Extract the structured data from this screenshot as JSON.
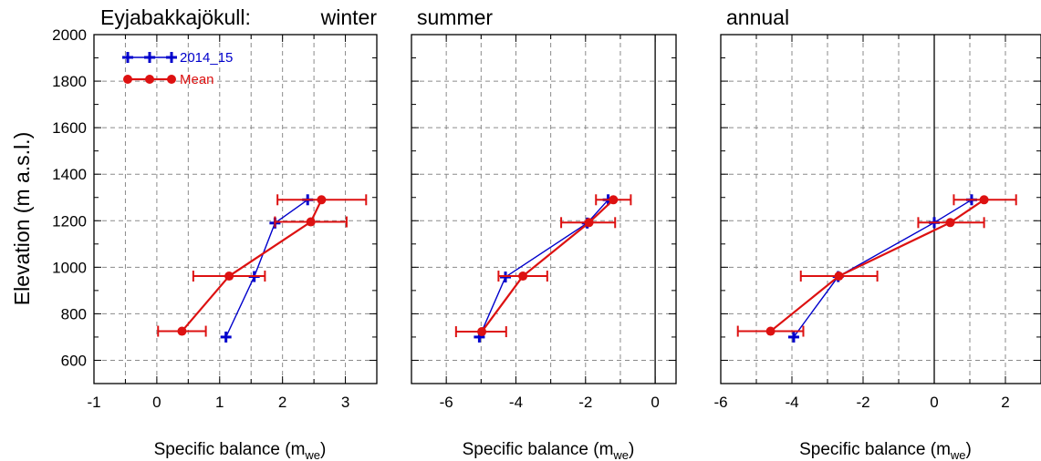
{
  "figure": {
    "ylabel": "Elevation (m a.s.l.)"
  },
  "chart_data": [
    {
      "type": "line",
      "glacier_title": "Eyjabakkajökull:",
      "panel_title": "winter",
      "xlabel_main": "Specific balance (m",
      "xlabel_sub": "we",
      "xlabel_close": ")",
      "xlim": [
        -1,
        3.5
      ],
      "xticks": [
        -1,
        0,
        1,
        2,
        3
      ],
      "ylim": [
        500,
        2000
      ],
      "yticks": [
        600,
        800,
        1000,
        1200,
        1400,
        1600,
        1800,
        2000
      ],
      "zero_line": false,
      "legend": {
        "position": "top-left",
        "entries": [
          "2014_15",
          "Mean"
        ]
      },
      "series": [
        {
          "name": "2014_15",
          "color": "#0000CC",
          "marker": "plus",
          "points": [
            [
              1.1,
              700
            ],
            [
              1.55,
              960
            ],
            [
              1.88,
              1190
            ],
            [
              2.4,
              1290
            ]
          ]
        },
        {
          "name": "Mean",
          "color": "#DD1111",
          "marker": "circle",
          "points": [
            [
              0.4,
              725
            ],
            [
              1.15,
              962
            ],
            [
              2.45,
              1195
            ],
            [
              2.62,
              1290
            ]
          ],
          "errors": [
            [
              0.02,
              0.78
            ],
            [
              0.58,
              1.72
            ],
            [
              1.88,
              3.02
            ],
            [
              1.92,
              3.33
            ]
          ]
        }
      ]
    },
    {
      "type": "line",
      "panel_title": "summer",
      "xlabel_main": "Specific balance (m",
      "xlabel_sub": "we",
      "xlabel_close": ")",
      "xlim": [
        -7,
        0.6
      ],
      "xticks": [
        -6,
        -4,
        -2,
        0
      ],
      "ylim": [
        500,
        2000
      ],
      "yticks": [
        600,
        800,
        1000,
        1200,
        1400,
        1600,
        1800,
        2000
      ],
      "zero_line": true,
      "series": [
        {
          "name": "2014_15",
          "color": "#0000CC",
          "marker": "plus",
          "points": [
            [
              -5.05,
              700
            ],
            [
              -4.3,
              958
            ],
            [
              -1.95,
              1190
            ],
            [
              -1.35,
              1290
            ]
          ]
        },
        {
          "name": "Mean",
          "color": "#DD1111",
          "marker": "circle",
          "points": [
            [
              -4.98,
              723
            ],
            [
              -3.8,
              962
            ],
            [
              -1.9,
              1192
            ],
            [
              -1.2,
              1290
            ]
          ],
          "errors": [
            [
              -5.72,
              -4.28
            ],
            [
              -4.5,
              -3.1
            ],
            [
              -2.7,
              -1.15
            ],
            [
              -1.7,
              -0.7
            ]
          ]
        }
      ]
    },
    {
      "type": "line",
      "panel_title": "annual",
      "xlabel_main": "Specific balance (m",
      "xlabel_sub": "we",
      "xlabel_close": ")",
      "xlim": [
        -6,
        3
      ],
      "xticks": [
        -6,
        -4,
        -2,
        0,
        2
      ],
      "ylim": [
        500,
        2000
      ],
      "yticks": [
        600,
        800,
        1000,
        1200,
        1400,
        1600,
        1800,
        2000
      ],
      "zero_line": true,
      "series": [
        {
          "name": "2014_15",
          "color": "#0000CC",
          "marker": "plus",
          "points": [
            [
              -3.95,
              700
            ],
            [
              -2.7,
              960
            ],
            [
              0.0,
              1192
            ],
            [
              1.05,
              1290
            ]
          ]
        },
        {
          "name": "Mean",
          "color": "#DD1111",
          "marker": "circle",
          "points": [
            [
              -4.6,
              725
            ],
            [
              -2.68,
              962
            ],
            [
              0.45,
              1192
            ],
            [
              1.4,
              1290
            ]
          ],
          "errors": [
            [
              -5.52,
              -3.68
            ],
            [
              -3.75,
              -1.6
            ],
            [
              -0.45,
              1.4
            ],
            [
              0.55,
              2.3
            ]
          ]
        }
      ]
    }
  ]
}
